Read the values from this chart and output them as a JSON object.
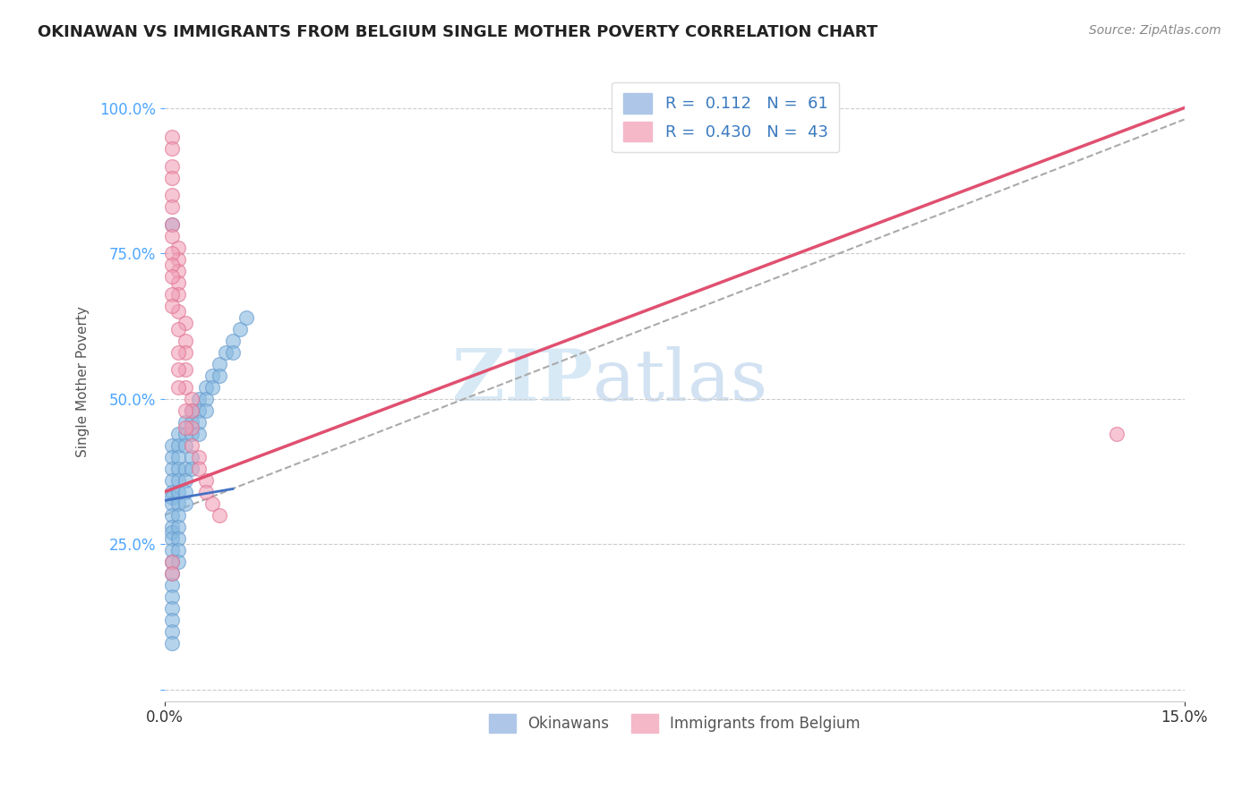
{
  "title": "OKINAWAN VS IMMIGRANTS FROM BELGIUM SINGLE MOTHER POVERTY CORRELATION CHART",
  "source": "Source: ZipAtlas.com",
  "ylabel": "Single Mother Poverty",
  "y_ticks": [
    0.0,
    0.25,
    0.5,
    0.75,
    1.0
  ],
  "y_tick_labels": [
    "",
    "25.0%",
    "50.0%",
    "75.0%",
    "100.0%"
  ],
  "xlim": [
    0.0,
    0.15
  ],
  "ylim": [
    -0.02,
    1.08
  ],
  "blue_color": "#85b8e0",
  "pink_color": "#f0a0b8",
  "blue_edge": "#6699cc",
  "pink_edge": "#e07090",
  "blue_line_color": "#4472c4",
  "pink_line_color": "#e05070",
  "gray_dash_color": "#aaaaaa",
  "background_color": "#ffffff",
  "pink_line_x0": 0.0,
  "pink_line_y0": 0.34,
  "pink_line_x1": 0.15,
  "pink_line_y1": 1.0,
  "blue_line_x0": 0.0,
  "blue_line_y0": 0.325,
  "blue_line_x1": 0.01,
  "blue_line_y1": 0.345,
  "gray_line_x0": 0.0,
  "gray_line_y0": 0.3,
  "gray_line_x1": 0.15,
  "gray_line_y1": 0.98,
  "okinawan_x": [
    0.001,
    0.001,
    0.001,
    0.001,
    0.001,
    0.001,
    0.001,
    0.001,
    0.001,
    0.001,
    0.001,
    0.001,
    0.001,
    0.001,
    0.001,
    0.001,
    0.002,
    0.002,
    0.002,
    0.002,
    0.002,
    0.002,
    0.002,
    0.002,
    0.002,
    0.002,
    0.002,
    0.003,
    0.003,
    0.003,
    0.003,
    0.003,
    0.003,
    0.003,
    0.004,
    0.004,
    0.004,
    0.004,
    0.004,
    0.005,
    0.005,
    0.005,
    0.005,
    0.006,
    0.006,
    0.006,
    0.007,
    0.007,
    0.008,
    0.008,
    0.009,
    0.01,
    0.01,
    0.011,
    0.012,
    0.001,
    0.001,
    0.001,
    0.001,
    0.002,
    0.001
  ],
  "okinawan_y": [
    0.42,
    0.4,
    0.38,
    0.36,
    0.34,
    0.33,
    0.32,
    0.3,
    0.28,
    0.27,
    0.26,
    0.24,
    0.22,
    0.2,
    0.18,
    0.16,
    0.44,
    0.42,
    0.4,
    0.38,
    0.36,
    0.34,
    0.32,
    0.3,
    0.28,
    0.26,
    0.24,
    0.46,
    0.44,
    0.42,
    0.38,
    0.36,
    0.34,
    0.32,
    0.48,
    0.46,
    0.44,
    0.4,
    0.38,
    0.5,
    0.48,
    0.46,
    0.44,
    0.52,
    0.5,
    0.48,
    0.54,
    0.52,
    0.56,
    0.54,
    0.58,
    0.6,
    0.58,
    0.62,
    0.64,
    0.14,
    0.12,
    0.1,
    0.08,
    0.22,
    0.8
  ],
  "belgium_x": [
    0.001,
    0.001,
    0.001,
    0.001,
    0.001,
    0.001,
    0.001,
    0.001,
    0.002,
    0.002,
    0.002,
    0.002,
    0.002,
    0.002,
    0.003,
    0.003,
    0.003,
    0.003,
    0.003,
    0.004,
    0.004,
    0.004,
    0.004,
    0.005,
    0.005,
    0.006,
    0.006,
    0.007,
    0.008,
    0.002,
    0.001,
    0.001,
    0.001,
    0.001,
    0.001,
    0.002,
    0.002,
    0.002,
    0.003,
    0.003,
    0.001,
    0.001,
    0.14
  ],
  "belgium_y": [
    0.95,
    0.93,
    0.9,
    0.88,
    0.85,
    0.83,
    0.8,
    0.78,
    0.76,
    0.74,
    0.72,
    0.7,
    0.68,
    0.65,
    0.63,
    0.6,
    0.58,
    0.55,
    0.52,
    0.5,
    0.48,
    0.45,
    0.42,
    0.4,
    0.38,
    0.36,
    0.34,
    0.32,
    0.3,
    0.62,
    0.75,
    0.73,
    0.71,
    0.68,
    0.66,
    0.58,
    0.55,
    0.52,
    0.48,
    0.45,
    0.22,
    0.2,
    0.44
  ]
}
